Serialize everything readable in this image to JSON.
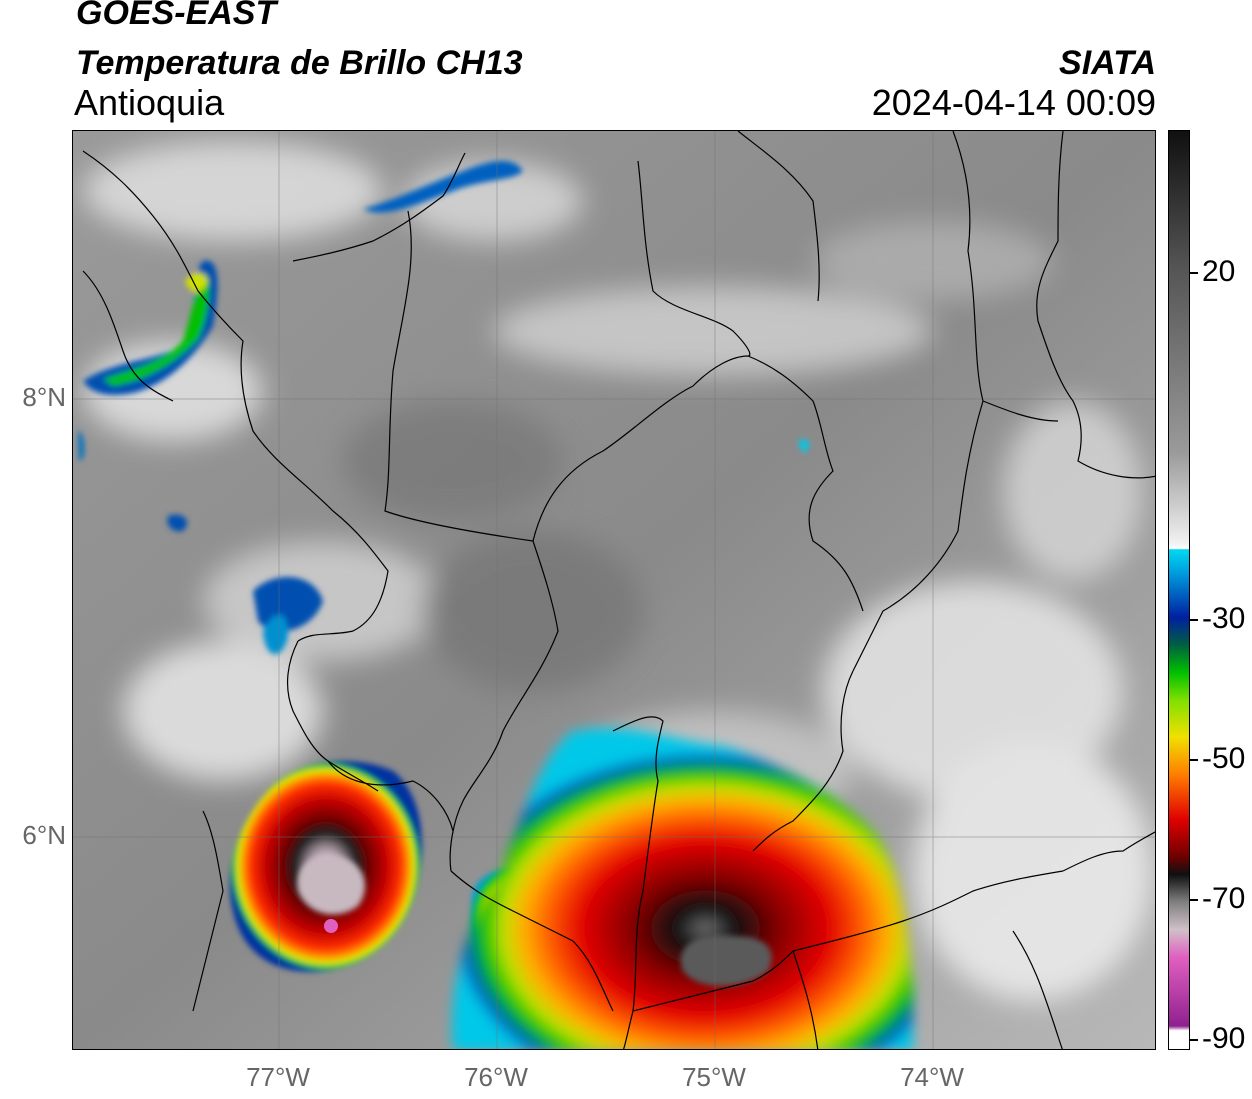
{
  "header": {
    "satellite": "GOES-EAST",
    "product": "Temperatura de Brillo CH13",
    "region": "Antioquia",
    "agency": "SIATA",
    "datetime": "2024-04-14 00:09"
  },
  "map": {
    "lat_ticks": [
      "8°N",
      "6°N"
    ],
    "lon_ticks": [
      "77°W",
      "76°W",
      "75°W",
      "74°W"
    ]
  },
  "colorbar": {
    "ticks": [
      "20",
      "-30",
      "-50",
      "-70",
      "-90"
    ],
    "colors": {
      "warm_dark": "#555555",
      "warm_light": "#f2f2f2",
      "cyan": "#00d8f0",
      "blue": "#0020a0",
      "green": "#00c000",
      "yellow": "#f0e000",
      "orange": "#ff8000",
      "red": "#e00000",
      "darkred": "#700000",
      "black": "#101010",
      "pink": "#e060c0",
      "purple": "#902090"
    }
  }
}
